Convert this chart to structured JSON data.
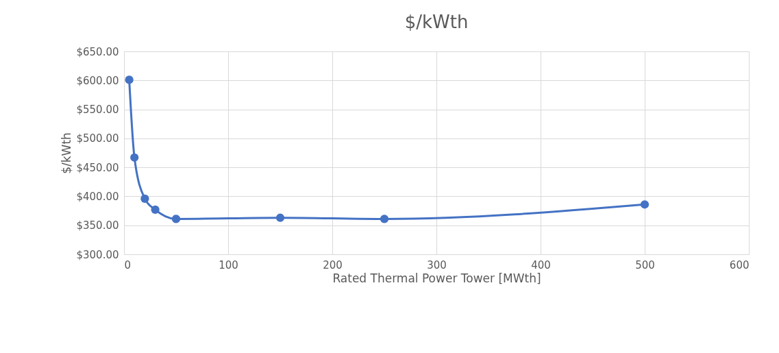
{
  "chart_data": {
    "type": "line",
    "title": "$/kWth",
    "xlabel": "Rated Thermal Power Tower [MWth]",
    "ylabel": "$/kWth",
    "x": [
      5,
      10,
      20,
      30,
      50,
      150,
      250,
      500
    ],
    "series": [
      {
        "color": "#4472c4",
        "values": [
          601,
          467,
          396,
          377,
          361,
          363,
          361,
          386
        ]
      }
    ],
    "xlim": [
      0,
      600
    ],
    "xticks": [
      0,
      100,
      200,
      300,
      400,
      500,
      600
    ],
    "ylim": [
      300,
      650
    ],
    "yticks": [
      {
        "value": 300,
        "label": "$300.00"
      },
      {
        "value": 350,
        "label": "$350.00"
      },
      {
        "value": 400,
        "label": "$400.00"
      },
      {
        "value": 450,
        "label": "$450.00"
      },
      {
        "value": 500,
        "label": "$500.00"
      },
      {
        "value": 550,
        "label": "$550.00"
      },
      {
        "value": 600,
        "label": "$600.00"
      },
      {
        "value": 650,
        "label": "$650.00"
      }
    ],
    "grid": true,
    "marker": "circle",
    "line_style": "solid"
  }
}
